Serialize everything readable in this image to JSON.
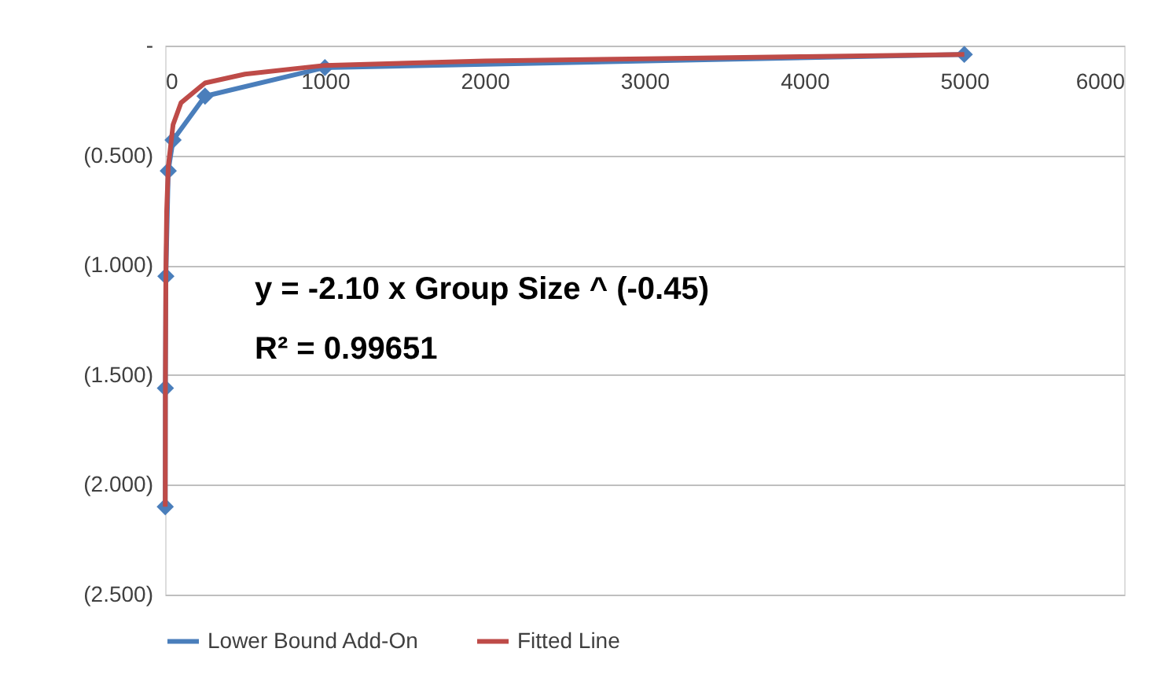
{
  "chart_data": {
    "type": "line",
    "annotations": [
      "y = -2.10 x Group Size ^ (-0.45)",
      "R² = 0.99651"
    ],
    "series": [
      {
        "name": "Lower Bound Add-On",
        "color": "#4a7ebb",
        "marker": "diamond",
        "x": [
          1,
          2,
          5,
          20,
          50,
          250,
          1000,
          5000
        ],
        "values": [
          -2.1,
          -1.56,
          -1.05,
          -0.57,
          -0.43,
          -0.23,
          -0.1,
          -0.04
        ]
      },
      {
        "name": "Fitted Line",
        "color": "#be4b48",
        "marker": "none",
        "x": [
          1,
          2,
          5,
          10,
          20,
          50,
          100,
          250,
          500,
          1000,
          2000,
          3000,
          4000,
          5000
        ],
        "values": [
          -2.1,
          -1.53,
          -1.03,
          -0.75,
          -0.55,
          -0.36,
          -0.26,
          -0.17,
          -0.13,
          -0.09,
          -0.07,
          -0.06,
          -0.05,
          -0.04
        ]
      }
    ],
    "xlim": [
      0,
      6000
    ],
    "xticks": [
      0,
      1000,
      2000,
      3000,
      4000,
      5000,
      6000
    ],
    "ylim": [
      -2.5,
      0
    ],
    "yticks": [
      {
        "value": -2.5,
        "label": "(2.500)"
      },
      {
        "value": -2.0,
        "label": "(2.000)"
      },
      {
        "value": -1.5,
        "label": "(1.500)"
      },
      {
        "value": -1.0,
        "label": "(1.000)"
      },
      {
        "value": -0.5,
        "label": "(0.500)"
      },
      {
        "value": 0,
        "label": "-"
      }
    ],
    "grid": "y",
    "legend": "bottom",
    "line_style": "solid"
  }
}
